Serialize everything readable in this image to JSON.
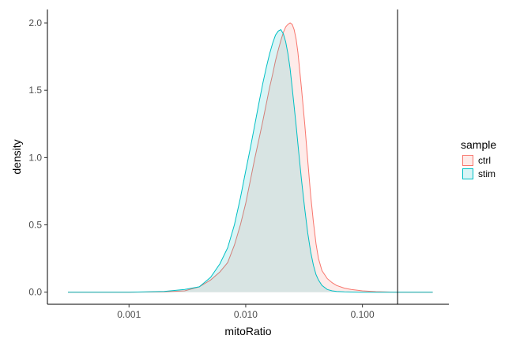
{
  "chart_data": {
    "type": "area",
    "title": "",
    "xlabel": "mitoRatio",
    "ylabel": "density",
    "x_scale": "log10",
    "xlim": [
      0.0002,
      0.55
    ],
    "ylim": [
      -0.09,
      2.1
    ],
    "x_ticks": [
      0.001,
      0.01,
      0.1
    ],
    "x_tick_labels": [
      "0.001",
      "0.010",
      "0.100"
    ],
    "y_ticks": [
      0,
      0.5,
      1,
      1.5,
      2
    ],
    "y_tick_labels": [
      "0.0",
      "0.5",
      "1.0",
      "1.5",
      "2.0"
    ],
    "grid": false,
    "vline": {
      "x": 0.2,
      "color": "#000000"
    },
    "legend": {
      "title": "sample",
      "placement": "right"
    },
    "series": [
      {
        "name": "ctrl",
        "line_color": "#F8766D",
        "fill_color": "#F8766D",
        "x": [
          0.0003,
          0.001,
          0.002,
          0.003,
          0.004,
          0.005,
          0.006,
          0.007,
          0.008,
          0.009,
          0.01,
          0.011,
          0.012,
          0.013,
          0.014,
          0.015,
          0.016,
          0.017,
          0.018,
          0.019,
          0.02,
          0.021,
          0.022,
          0.023,
          0.024,
          0.025,
          0.026,
          0.027,
          0.028,
          0.029,
          0.03,
          0.032,
          0.034,
          0.036,
          0.038,
          0.04,
          0.042,
          0.045,
          0.05,
          0.055,
          0.06,
          0.07,
          0.08,
          0.1,
          0.13,
          0.2,
          0.4
        ],
        "y": [
          0,
          0,
          0.002,
          0.01,
          0.04,
          0.09,
          0.15,
          0.22,
          0.35,
          0.5,
          0.66,
          0.84,
          1.0,
          1.14,
          1.27,
          1.4,
          1.52,
          1.62,
          1.72,
          1.8,
          1.87,
          1.93,
          1.97,
          1.99,
          2.0,
          1.99,
          1.95,
          1.88,
          1.78,
          1.65,
          1.52,
          1.25,
          0.98,
          0.72,
          0.52,
          0.36,
          0.25,
          0.16,
          0.1,
          0.07,
          0.05,
          0.03,
          0.02,
          0.01,
          0.004,
          0,
          0
        ]
      },
      {
        "name": "stim",
        "line_color": "#00BFC4",
        "fill_color": "#00BFC4",
        "x": [
          0.0003,
          0.001,
          0.002,
          0.003,
          0.004,
          0.005,
          0.006,
          0.007,
          0.008,
          0.009,
          0.01,
          0.011,
          0.012,
          0.013,
          0.014,
          0.015,
          0.016,
          0.017,
          0.018,
          0.019,
          0.02,
          0.021,
          0.022,
          0.023,
          0.024,
          0.025,
          0.026,
          0.027,
          0.028,
          0.029,
          0.03,
          0.032,
          0.034,
          0.036,
          0.038,
          0.04,
          0.042,
          0.045,
          0.05,
          0.055,
          0.06,
          0.07,
          0.08,
          0.1,
          0.13,
          0.2,
          0.4
        ],
        "y": [
          0,
          0,
          0.005,
          0.02,
          0.04,
          0.11,
          0.21,
          0.33,
          0.5,
          0.7,
          0.9,
          1.08,
          1.25,
          1.41,
          1.55,
          1.67,
          1.77,
          1.85,
          1.91,
          1.94,
          1.95,
          1.92,
          1.86,
          1.77,
          1.66,
          1.52,
          1.38,
          1.24,
          1.1,
          0.97,
          0.84,
          0.62,
          0.44,
          0.3,
          0.2,
          0.13,
          0.09,
          0.05,
          0.02,
          0.01,
          0.005,
          0.002,
          0.001,
          0,
          0,
          0,
          0
        ]
      }
    ]
  }
}
